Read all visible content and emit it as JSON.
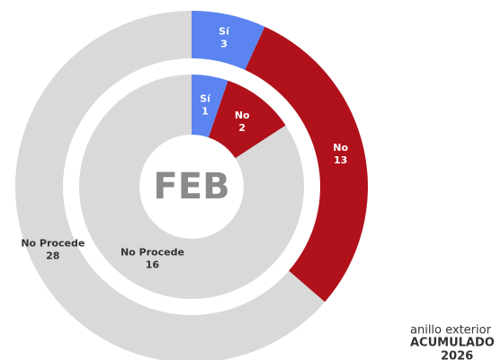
{
  "chart_data": {
    "type": "nested-donut",
    "center_label": "FEB",
    "categories": [
      "Sí",
      "No",
      "No Procede"
    ],
    "colors": [
      "#5b84f0",
      "#b0111b",
      "#d9d9d9"
    ],
    "rings": [
      {
        "values": [
          3,
          13,
          28
        ]
      },
      {
        "values": [
          1,
          2,
          16
        ]
      }
    ],
    "note": [
      "anillo exterior",
      "ACUMULADO",
      "2026"
    ]
  }
}
